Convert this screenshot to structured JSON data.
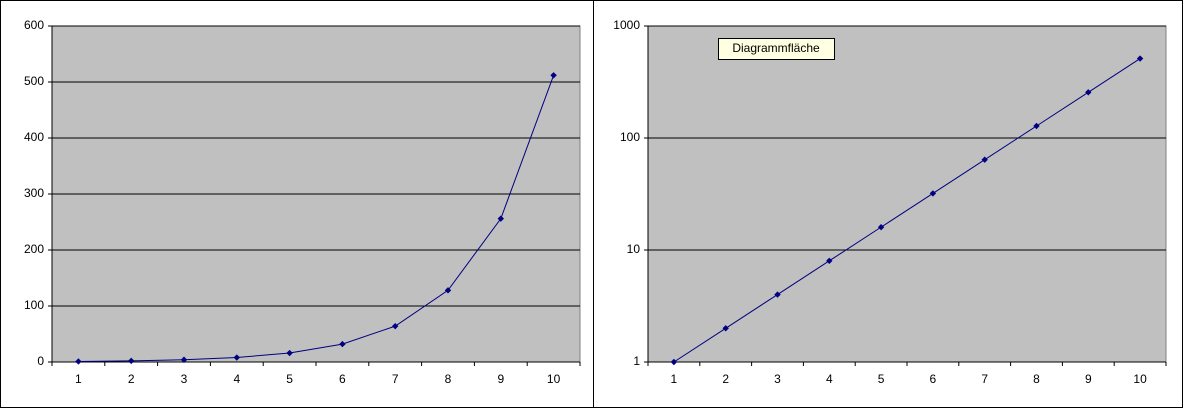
{
  "chart_data": [
    {
      "type": "line",
      "categories": [
        "1",
        "2",
        "3",
        "4",
        "5",
        "6",
        "7",
        "8",
        "9",
        "10"
      ],
      "series": [
        {
          "color": "#000080",
          "values": [
            1,
            2,
            4,
            8,
            16,
            32,
            64,
            128,
            256,
            512
          ]
        }
      ],
      "ylim": [
        0,
        600
      ],
      "yticks": [
        0,
        100,
        200,
        300,
        400,
        500,
        600
      ],
      "grid": true,
      "log": false
    },
    {
      "type": "line",
      "categories": [
        "1",
        "2",
        "3",
        "4",
        "5",
        "6",
        "7",
        "8",
        "9",
        "10"
      ],
      "series": [
        {
          "color": "#000080",
          "values": [
            1,
            2,
            4,
            8,
            16,
            32,
            64,
            128,
            256,
            512
          ]
        }
      ],
      "ylim": [
        1,
        1000
      ],
      "yticks": [
        1,
        10,
        100,
        1000
      ],
      "grid": true,
      "log": true,
      "annotation": "Diagrammfläche"
    }
  ]
}
